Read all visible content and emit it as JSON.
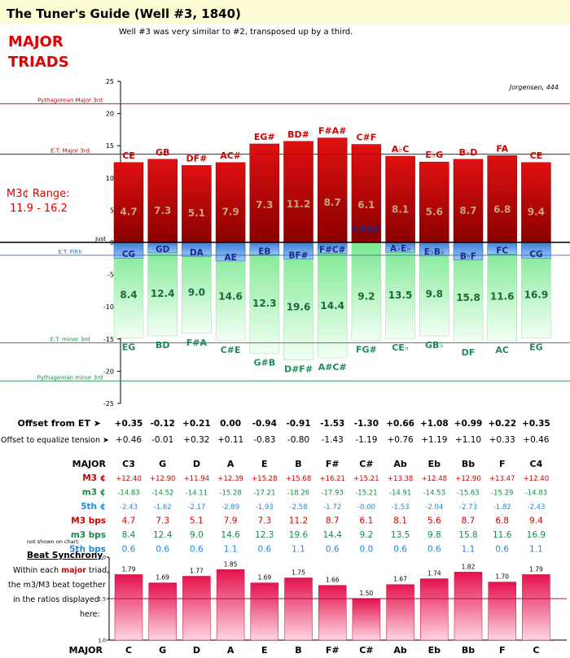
{
  "header": {
    "title": "The Tuner's Guide (Well #3, 1840)",
    "subtitle": "Well #3 was very similar to #2, transposed up by a third.",
    "heading_line1": "MAJOR",
    "heading_line2": "TRIADS",
    "credit": "Jorgensen, 444",
    "range_label": "M3¢ Range:",
    "range_value": "11.9 - 16.2"
  },
  "colors": {
    "major_third": "#cc0000",
    "minor_third": "#1a9e5a",
    "fifth": "#3a7dc9",
    "note_label_major": "#d00000",
    "note_label_fifth": "#1a2a8c",
    "note_label_minor": "#1f8a5a",
    "sync_bar": "#e8205a",
    "header_bg": "#fdfbd4"
  },
  "chart_data": [
    {
      "type": "bar",
      "title": "",
      "ylim": [
        -25,
        25
      ],
      "yticks": [
        -25,
        -20,
        -15,
        -10,
        -5,
        0,
        5,
        10,
        15,
        20,
        25
      ],
      "reference_lines": [
        {
          "label": "Pythagorean Major 3rd",
          "value": 21.5,
          "color": "#cc0000"
        },
        {
          "label": "E.T. Major 3rd",
          "value": 13.7,
          "color": "#cc0000"
        },
        {
          "label": "Just",
          "value": 0,
          "color": "#000000"
        },
        {
          "label": "E.T. Fifth",
          "value": -2.0,
          "color": "#1e6fd0"
        },
        {
          "label": "E.T. minor 3rd",
          "value": -15.6,
          "color": "#1a8a4a"
        },
        {
          "label": "Pythagorean minor 3rd",
          "value": -21.5,
          "color": "#1a8a4a"
        }
      ],
      "series": [
        {
          "name": "M3",
          "values": [
            12.4,
            12.9,
            11.94,
            12.39,
            15.28,
            15.68,
            16.21,
            15.21,
            13.38,
            12.48,
            12.9,
            13.47,
            12.4
          ],
          "labels": [
            "CE",
            "GB",
            "DF#",
            "AC#",
            "EG#",
            "BD#",
            "F#A#",
            "C#F",
            "A♭C",
            "E♭G",
            "B♭D",
            "FA",
            "CE"
          ],
          "bar_text": [
            "4.7",
            "7.3",
            "5.1",
            "7.9",
            "7.3",
            "11.2",
            "8.7",
            "6.1",
            "8.1",
            "5.6",
            "8.7",
            "6.8",
            "9.4"
          ]
        },
        {
          "name": "5th",
          "values": [
            -2.43,
            -1.62,
            -2.17,
            -2.89,
            -1.93,
            -2.58,
            -1.72,
            0.0,
            -1.53,
            -2.04,
            -2.73,
            -1.82,
            -2.43
          ],
          "labels": [
            "CG",
            "GD",
            "DA",
            "AE",
            "EB",
            "BF#",
            "F#C#",
            "C#G#",
            "A♭E♭",
            "E♭B♭",
            "B♭F",
            "FC",
            "CG"
          ]
        },
        {
          "name": "m3",
          "values": [
            -14.83,
            -14.52,
            -14.11,
            -15.28,
            -17.21,
            -18.26,
            -17.93,
            -15.21,
            -14.91,
            -14.53,
            -15.63,
            -15.29,
            -14.83
          ],
          "labels": [
            "EG",
            "BD",
            "F#A",
            "C#E",
            "G#B",
            "D#F#",
            "A#C#",
            "FG#",
            "CE♭",
            "GB♭",
            "DF",
            "AC",
            "EG"
          ],
          "bar_text": [
            "8.4",
            "12.4",
            "9.0",
            "14.6",
            "12.3",
            "19.6",
            "14.4",
            "9.2",
            "13.5",
            "9.8",
            "15.8",
            "11.6",
            "16.9"
          ]
        }
      ]
    },
    {
      "type": "bar",
      "title": "Beat Synchrony",
      "ylim": [
        1.0,
        2.0
      ],
      "yticks": [
        1.0,
        1.5,
        2.0
      ],
      "categories": [
        "C",
        "G",
        "D",
        "A",
        "E",
        "B",
        "F#",
        "C#",
        "Ab",
        "Eb",
        "Bb",
        "F",
        "C"
      ],
      "values": [
        1.79,
        1.69,
        1.77,
        1.85,
        1.69,
        1.75,
        1.66,
        1.5,
        1.67,
        1.74,
        1.82,
        1.7,
        1.79
      ],
      "value_labels": [
        "1.79",
        "1.69",
        "1.77",
        "1.85",
        "1.69",
        "1.75",
        "1.66",
        "1.50",
        "1.67",
        "1.74",
        "1.82",
        "1.70",
        "1.79"
      ]
    }
  ],
  "offsets": {
    "et_label": "Offset from ET ➤",
    "et_values": [
      "+0.35",
      "-0.12",
      "+0.21",
      "0.00",
      "-0.94",
      "-0.91",
      "-1.53",
      "-1.30",
      "+0.66",
      "+1.08",
      "+0.99",
      "+0.22",
      "+0.35"
    ],
    "eq_label": "Offset to equalize tension ➤",
    "eq_values": [
      "+0.46",
      "-0.01",
      "+0.32",
      "+0.11",
      "-0.83",
      "-0.80",
      "-1.43",
      "-1.19",
      "+0.76",
      "+1.19",
      "+1.10",
      "+0.33",
      "+0.46"
    ]
  },
  "table": {
    "header_label": "MAJOR",
    "columns": [
      "C3",
      "G",
      "D",
      "A",
      "E",
      "B",
      "F#",
      "C#",
      "Ab",
      "Eb",
      "Bb",
      "F",
      "C4"
    ],
    "note": "not shown on chart:",
    "rows": [
      {
        "label": "M3 ¢",
        "color": "#cc0000",
        "values": [
          "+12.40",
          "+12.90",
          "+11.94",
          "+12.39",
          "+15.28",
          "+15.68",
          "+16.21",
          "+15.21",
          "+13.38",
          "+12.48",
          "+12.90",
          "+13.47",
          "+12.40"
        ]
      },
      {
        "label": "m3 ¢",
        "color": "#1a8a4a",
        "values": [
          "-14.83",
          "-14.52",
          "-14.11",
          "-15.28",
          "-17.21",
          "-18.26",
          "-17.93",
          "-15.21",
          "-14.91",
          "-14.53",
          "-15.63",
          "-15.29",
          "-14.83"
        ]
      },
      {
        "label": "5th ¢",
        "color": "#1e88e5",
        "values": [
          "-2.43",
          "-1.62",
          "-2.17",
          "-2.89",
          "-1.93",
          "-2.58",
          "-1.72",
          "-0.00",
          "-1.53",
          "-2.04",
          "-2.73",
          "-1.82",
          "-2.43"
        ]
      },
      {
        "label": "M3 bps",
        "color": "#cc0000",
        "values": [
          "4.7",
          "7.3",
          "5.1",
          "7.9",
          "7.3",
          "11.2",
          "8.7",
          "6.1",
          "8.1",
          "5.6",
          "8.7",
          "6.8",
          "9.4"
        ]
      },
      {
        "label": "m3 bps",
        "color": "#1a8a4a",
        "values": [
          "8.4",
          "12.4",
          "9.0",
          "14.6",
          "12.3",
          "19.6",
          "14.4",
          "9.2",
          "13.5",
          "9.8",
          "15.8",
          "11.6",
          "16.9"
        ]
      },
      {
        "label": "5th bps",
        "color": "#1e88e5",
        "values": [
          "0.6",
          "0.6",
          "0.6",
          "1.1",
          "0.6",
          "1.1",
          "0.6",
          "0.0",
          "0.6",
          "0.6",
          "1.1",
          "0.6",
          "1.1"
        ]
      }
    ]
  },
  "sync": {
    "title": "Beat Synchrony",
    "desc_lines": [
      "Within each ",
      "major",
      " triad,",
      "the m3/M3 beat together",
      "in the ratios displayed",
      "here:"
    ],
    "footer_label": "MAJOR"
  }
}
